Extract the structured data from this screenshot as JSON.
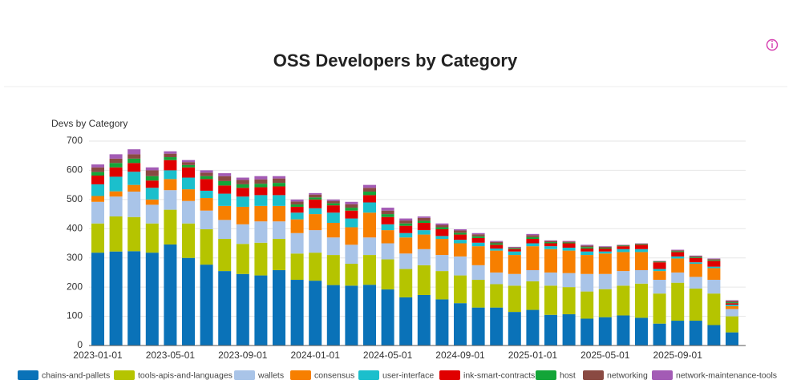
{
  "chart_data": {
    "type": "stacked-bar",
    "title": "OSS Developers by Category",
    "y_label": "Devs by Category",
    "categories": [
      "2023-01-01",
      null,
      null,
      null,
      "2023-05-01",
      null,
      null,
      null,
      "2023-09-01",
      null,
      null,
      null,
      "2024-01-01",
      null,
      null,
      null,
      "2024-05-01",
      null,
      null,
      null,
      "2024-09-01",
      null,
      null,
      null,
      "2025-01-01",
      null,
      null,
      null,
      "2025-05-01",
      null,
      null,
      null,
      "2025-09-01",
      null,
      null,
      null
    ],
    "ylim": [
      0,
      700
    ],
    "yticks": [
      0,
      100,
      200,
      300,
      400,
      500,
      600,
      700
    ],
    "grid": true,
    "series": [
      {
        "name": "chains-and-pallets",
        "color": "#0a72b8",
        "values": [
          318,
          322,
          323,
          318,
          346,
          300,
          277,
          255,
          245,
          240,
          258,
          225,
          222,
          207,
          205,
          208,
          192,
          165,
          173,
          158,
          145,
          130,
          130,
          115,
          122,
          105,
          107,
          92,
          97,
          103,
          95,
          75,
          85,
          85,
          70,
          45
        ]
      },
      {
        "name": "tools-apis-and-languages",
        "color": "#b5c400",
        "values": [
          100,
          120,
          117,
          100,
          119,
          118,
          121,
          110,
          103,
          112,
          107,
          90,
          96,
          103,
          75,
          102,
          103,
          97,
          102,
          97,
          95,
          95,
          80,
          90,
          98,
          100,
          93,
          93,
          96,
          102,
          117,
          103,
          130,
          110,
          108,
          55
        ]
      },
      {
        "name": "wallets",
        "color": "#a9c4e8",
        "values": [
          74,
          68,
          87,
          64,
          67,
          77,
          64,
          65,
          67,
          73,
          60,
          70,
          77,
          60,
          65,
          60,
          55,
          53,
          55,
          55,
          65,
          50,
          40,
          40,
          38,
          45,
          48,
          60,
          52,
          50,
          46,
          47,
          35,
          40,
          47,
          25
        ]
      },
      {
        "name": "consensus",
        "color": "#f77f00",
        "values": [
          20,
          18,
          23,
          18,
          38,
          40,
          43,
          48,
          60,
          53,
          53,
          47,
          55,
          50,
          60,
          85,
          45,
          55,
          50,
          55,
          45,
          65,
          75,
          65,
          82,
          80,
          77,
          65,
          70,
          65,
          62,
          30,
          48,
          45,
          40,
          10
        ]
      },
      {
        "name": "user-interface",
        "color": "#1bbfcc",
        "values": [
          40,
          50,
          45,
          40,
          30,
          40,
          25,
          42,
          35,
          37,
          37,
          23,
          20,
          35,
          30,
          35,
          20,
          15,
          15,
          10,
          12,
          12,
          7,
          12,
          10,
          10,
          10,
          12,
          7,
          10,
          10,
          7,
          7,
          5,
          5,
          5
        ]
      },
      {
        "name": "ink-smart-contracts",
        "color": "#e00000",
        "values": [
          30,
          32,
          30,
          25,
          35,
          35,
          40,
          28,
          30,
          27,
          30,
          20,
          30,
          25,
          27,
          25,
          25,
          25,
          25,
          23,
          18,
          16,
          13,
          8,
          15,
          10,
          15,
          10,
          10,
          10,
          15,
          23,
          15,
          15,
          20,
          5
        ]
      },
      {
        "name": "host",
        "color": "#13a538",
        "values": [
          12,
          15,
          15,
          15,
          10,
          8,
          10,
          15,
          12,
          12,
          12,
          8,
          7,
          7,
          10,
          12,
          10,
          8,
          7,
          7,
          6,
          6,
          5,
          3,
          6,
          4,
          3,
          5,
          3,
          2,
          2,
          2,
          3,
          3,
          3,
          3
        ]
      },
      {
        "name": "networking",
        "color": "#8a4a42",
        "values": [
          16,
          15,
          15,
          20,
          12,
          10,
          12,
          17,
          15,
          15,
          15,
          10,
          10,
          8,
          12,
          13,
          12,
          10,
          10,
          8,
          8,
          7,
          5,
          3,
          7,
          4,
          3,
          5,
          3,
          2,
          2,
          2,
          3,
          3,
          3,
          5
        ]
      },
      {
        "name": "network-maintenance-tools",
        "color": "#a35bb5",
        "values": [
          10,
          15,
          17,
          10,
          8,
          7,
          8,
          10,
          8,
          11,
          8,
          7,
          5,
          5,
          8,
          10,
          10,
          7,
          5,
          5,
          4,
          4,
          3,
          2,
          4,
          2,
          2,
          3,
          2,
          1,
          1,
          1,
          2,
          2,
          2,
          2
        ]
      }
    ]
  }
}
